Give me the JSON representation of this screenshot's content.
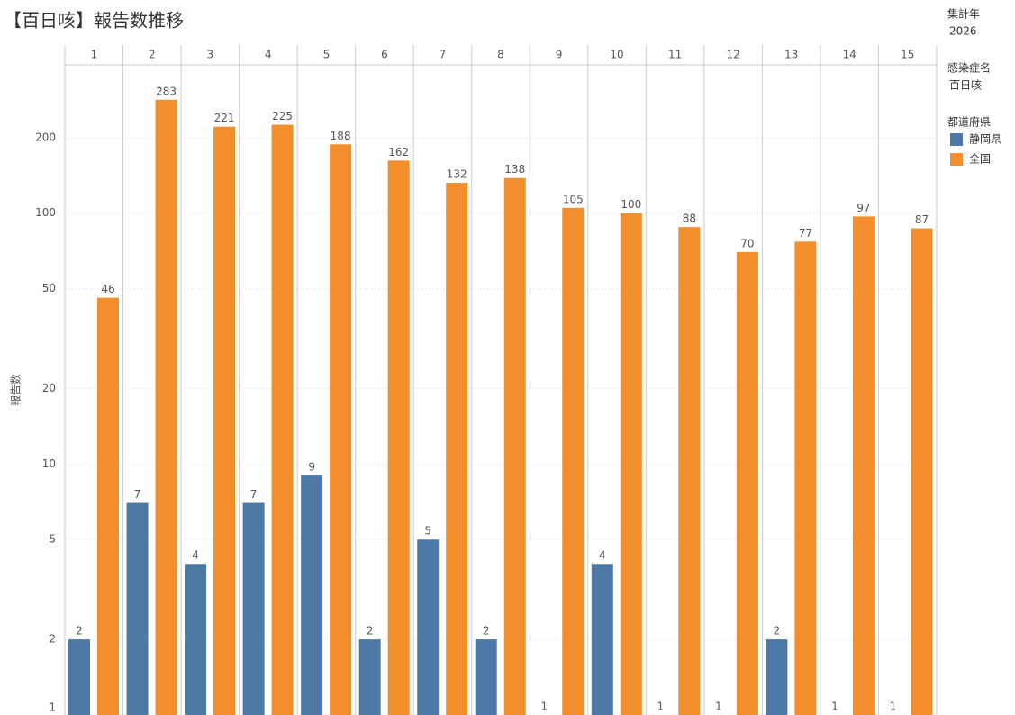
{
  "chart_data": {
    "type": "bar",
    "title": "【百日咳】報告数推移",
    "y_label": "報告数",
    "categories": [
      "1",
      "2",
      "3",
      "4",
      "5",
      "6",
      "7",
      "8",
      "9",
      "10",
      "11",
      "12",
      "13",
      "14",
      "15"
    ],
    "series": [
      {
        "name": "静岡県",
        "color": "#4e79a7",
        "values": [
          2,
          7,
          4,
          7,
          9,
          2,
          5,
          2,
          1,
          4,
          1,
          1,
          2,
          1,
          1
        ]
      },
      {
        "name": "全国",
        "color": "#f28e2b",
        "values": [
          46,
          283,
          221,
          225,
          188,
          162,
          132,
          138,
          105,
          100,
          88,
          70,
          77,
          97,
          87
        ]
      }
    ],
    "ylim": [
      1,
      390
    ],
    "yticks": [
      1,
      2,
      5,
      10,
      20,
      50,
      100,
      200
    ],
    "log_scale": true,
    "grid": true,
    "filters": [
      {
        "title": "集計年",
        "value": "2026"
      },
      {
        "title": "感染症名",
        "value": "百日咳"
      }
    ],
    "legend_title": "都道府県"
  }
}
